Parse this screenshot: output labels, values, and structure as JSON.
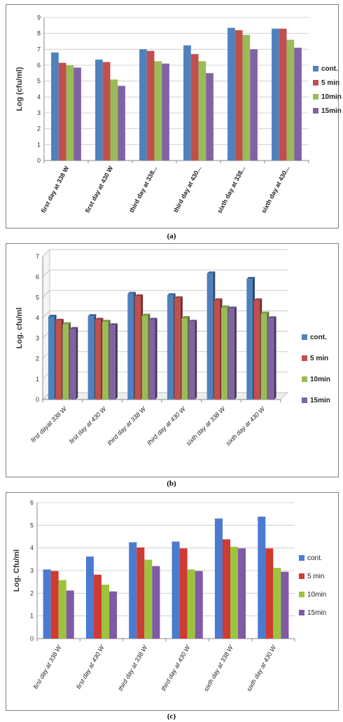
{
  "charts": [
    {
      "caption": "(a)",
      "colors": [
        "#4f81bd",
        "#c0504d",
        "#9bbb59",
        "#8064a2"
      ],
      "chart_data": {
        "type": "bar",
        "categories": [
          "first day at 338 W",
          "first day at 430 W",
          "third day at 338...",
          "third day at 430...",
          "sixth day at 338...",
          "sixth day at 430..."
        ],
        "series": [
          {
            "name": "cont.",
            "values": [
              6.8,
              6.35,
              7.0,
              7.25,
              8.35,
              8.3
            ]
          },
          {
            "name": "5 min",
            "values": [
              6.15,
              6.2,
              6.9,
              6.7,
              8.2,
              8.3
            ]
          },
          {
            "name": "10min",
            "values": [
              6.0,
              5.1,
              6.25,
              6.25,
              7.9,
              7.6
            ]
          },
          {
            "name": "15min",
            "values": [
              5.85,
              4.7,
              6.1,
              5.5,
              7.0,
              7.1
            ]
          }
        ],
        "ylabel": "Log (cfu/ml)",
        "ylim": [
          0,
          9
        ],
        "yticks": [
          "0",
          "1",
          "2",
          "3",
          "4",
          "5",
          "6",
          "7",
          "8",
          "9"
        ],
        "grid": true,
        "legend": "right"
      }
    },
    {
      "caption": "(b)",
      "colors": [
        "#4f81bd",
        "#c0504d",
        "#9bbb59",
        "#8064a2"
      ],
      "chart_data": {
        "type": "bar",
        "categories": [
          "first dayat 338 W",
          "first day at 430 W",
          "third day at 338 W",
          "third day at 430 W",
          "sixth day at 338 W",
          "sixth day at 430 W"
        ],
        "series": [
          {
            "name": "cont.",
            "values": [
              4.05,
              4.08,
              5.17,
              5.1,
              6.17,
              5.9
            ]
          },
          {
            "name": "5 min",
            "values": [
              3.85,
              3.9,
              5.05,
              4.95,
              4.85,
              4.85
            ]
          },
          {
            "name": "10min",
            "values": [
              3.68,
              3.8,
              4.1,
              3.98,
              4.5,
              4.2
            ]
          },
          {
            "name": "15min",
            "values": [
              3.45,
              3.63,
              3.9,
              3.8,
              4.45,
              3.97
            ]
          }
        ],
        "ylabel": "Log. cfu/ml",
        "ylim": [
          0,
          7
        ],
        "yticks": [
          "0",
          "1",
          "2",
          "3",
          "4",
          "5",
          "6",
          "7"
        ],
        "grid": true,
        "legend": "right"
      }
    },
    {
      "caption": "(c)",
      "colors": [
        "#4a7bd0",
        "#cf3b32",
        "#9bc43c",
        "#7f5aa7"
      ],
      "chart_data": {
        "type": "bar",
        "categories": [
          "first day at 338 W",
          "first day at 430 W",
          "third day at 338 W",
          "third day at 430 W",
          "sixth day at 338 W",
          "sixth day at 430 W"
        ],
        "series": [
          {
            "name": "cont.",
            "values": [
              3.05,
              3.62,
              4.25,
              4.28,
              5.3,
              5.38
            ]
          },
          {
            "name": "5 min",
            "values": [
              2.98,
              2.82,
              4.02,
              3.98,
              4.38,
              3.98
            ]
          },
          {
            "name": "10min",
            "values": [
              2.58,
              2.38,
              3.48,
              3.05,
              4.05,
              3.12
            ]
          },
          {
            "name": "15min",
            "values": [
              2.12,
              2.08,
              3.2,
              2.98,
              3.98,
              2.95
            ]
          }
        ],
        "ylabel": "Log. Cfu/ml",
        "ylim": [
          0,
          6
        ],
        "yticks": [
          "0",
          "1",
          "2",
          "3",
          "4",
          "5",
          "6"
        ],
        "grid": true,
        "legend": "right"
      }
    }
  ]
}
